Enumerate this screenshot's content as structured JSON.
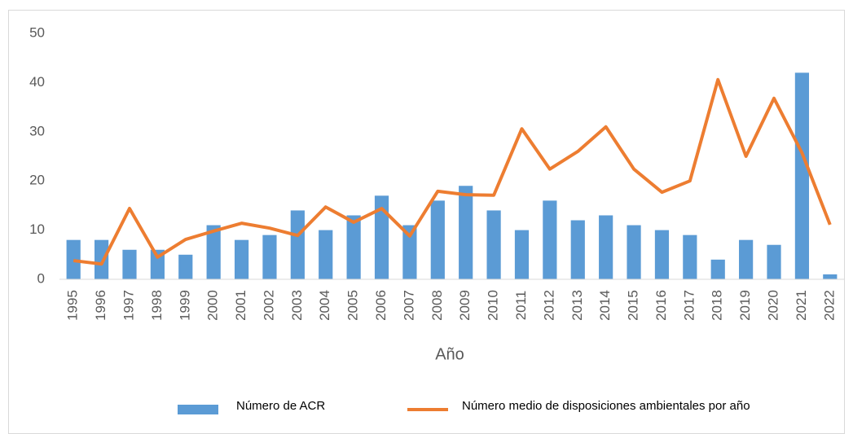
{
  "chart_data": {
    "type": "bar",
    "x_label": "Año",
    "categories": [
      "1995",
      "1996",
      "1997",
      "1998",
      "1999",
      "2000",
      "2001",
      "2002",
      "2003",
      "2004",
      "2005",
      "2006",
      "2007",
      "2008",
      "2009",
      "2010",
      "2011",
      "2012",
      "2013",
      "2014",
      "2015",
      "2016",
      "2017",
      "2018",
      "2019",
      "2020",
      "2021",
      "2022"
    ],
    "series": [
      {
        "name": "Número de ACR",
        "type": "bar",
        "color": "#5b9bd5",
        "values": [
          8,
          8,
          6,
          6,
          5,
          11,
          8,
          9,
          14,
          10,
          13,
          17,
          11,
          16,
          19,
          14,
          10,
          16,
          12,
          13,
          11,
          10,
          9,
          4,
          8,
          7,
          42,
          1
        ]
      },
      {
        "name": "Número medio de disposiciones ambientales por año",
        "type": "line",
        "color": "#ed7d31",
        "values": [
          3.8,
          3.1,
          14.4,
          4.5,
          8.1,
          9.8,
          11.4,
          10.4,
          8.9,
          14.7,
          11.6,
          14.4,
          8.8,
          17.9,
          17.2,
          17.1,
          30.6,
          22.4,
          26,
          31,
          22.4,
          17.7,
          20,
          40.6,
          25,
          36.8,
          25.7,
          11.1
        ]
      }
    ],
    "ylim": [
      0,
      50
    ],
    "yticks": [
      0,
      10,
      20,
      30,
      40,
      50
    ],
    "grid": false,
    "legend": "bottom"
  }
}
